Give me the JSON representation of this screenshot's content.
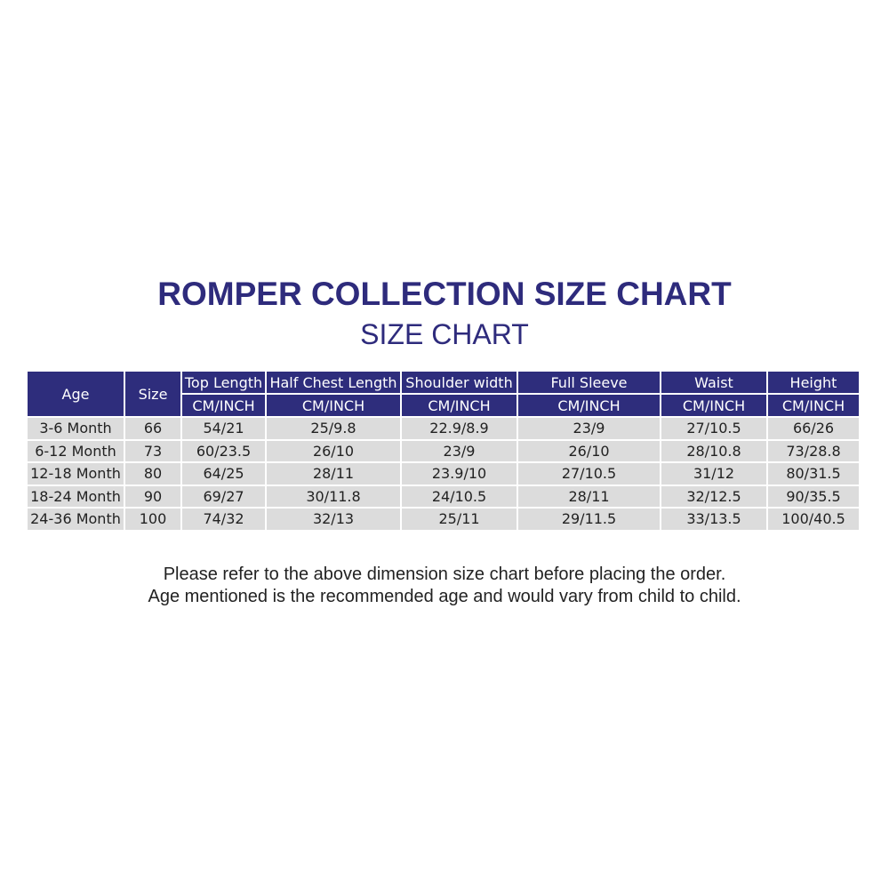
{
  "title": "ROMPER COLLECTION SIZE CHART",
  "subtitle": "SIZE CHART",
  "table": {
    "columns": [
      "Age",
      "Size",
      "Top Length",
      "Half Chest Length",
      "Shoulder width",
      "Full Sleeve",
      "Waist",
      "Height"
    ],
    "unit": "CM/INCH",
    "rows": [
      [
        "3-6 Month",
        "66",
        "54/21",
        "25/9.8",
        "22.9/8.9",
        "23/9",
        "27/10.5",
        "66/26"
      ],
      [
        "6-12 Month",
        "73",
        "60/23.5",
        "26/10",
        "23/9",
        "26/10",
        "28/10.8",
        "73/28.8"
      ],
      [
        "12-18 Month",
        "80",
        "64/25",
        "28/11",
        "23.9/10",
        "27/10.5",
        "31/12",
        "80/31.5"
      ],
      [
        "18-24 Month",
        "90",
        "69/27",
        "30/11.8",
        "24/10.5",
        "28/11",
        "32/12.5",
        "90/35.5"
      ],
      [
        "24-36 Month",
        "100",
        "74/32",
        "32/13",
        "25/11",
        "29/11.5",
        "33/13.5",
        "100/40.5"
      ]
    ]
  },
  "notes": [
    "Please refer to the above dimension size chart before placing the order.",
    "Age mentioned is the recommended age and would vary from child to child."
  ],
  "colors": {
    "header": "#2e2d7c",
    "cell": "#dcdcdc",
    "title": "#2e2b7c"
  }
}
